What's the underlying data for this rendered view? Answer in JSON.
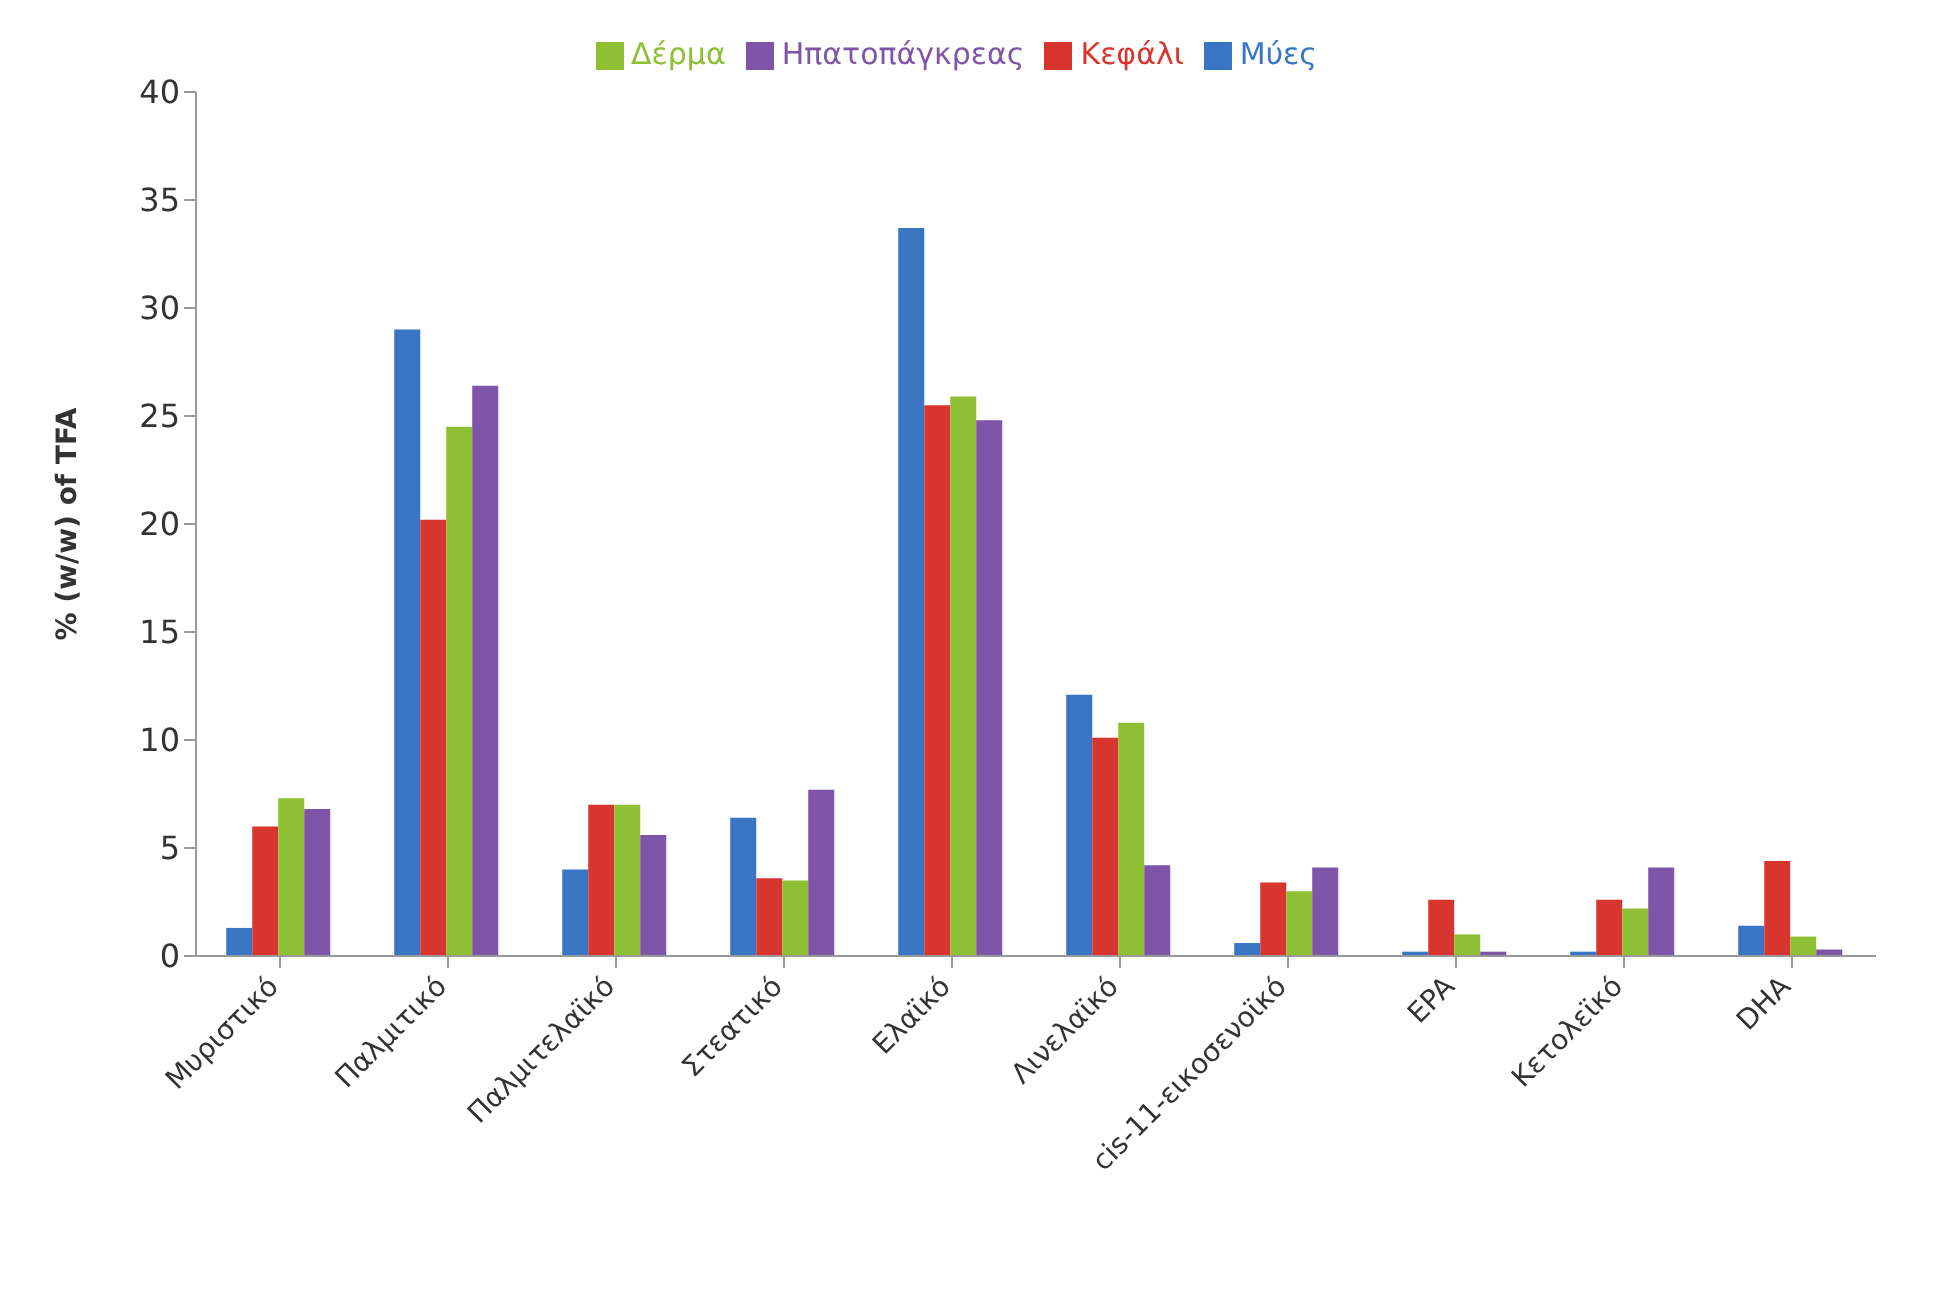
{
  "chart_data": {
    "type": "bar",
    "ylabel": "% (w/w) of TFA",
    "categories": [
      "Μυριστικό",
      "Παλμιτικό",
      "Παλμιτελαϊκό",
      "Στεατικό",
      "Ελαϊκό",
      "Λινελαϊκό",
      "cis-11-εικοσενοϊκό",
      "EPA",
      "Κετολεϊκό",
      "DHA"
    ],
    "series": [
      {
        "name": "Μύες",
        "color": "#3a75c4",
        "values": [
          1.3,
          29.0,
          4.0,
          6.4,
          33.7,
          12.1,
          0.6,
          0.2,
          0.2,
          1.4
        ]
      },
      {
        "name": "Κεφάλι",
        "color": "#d9352f",
        "values": [
          6.0,
          20.2,
          7.0,
          3.6,
          25.5,
          10.1,
          3.4,
          2.6,
          2.6,
          4.4
        ]
      },
      {
        "name": "Δέρμα",
        "color": "#8fbf32",
        "values": [
          7.3,
          24.5,
          7.0,
          3.5,
          25.9,
          10.8,
          3.0,
          1.0,
          2.2,
          0.9
        ]
      },
      {
        "name": "Ηπατοπάγκρεας",
        "color": "#7e55a8",
        "values": [
          6.8,
          26.4,
          5.6,
          7.7,
          24.8,
          4.2,
          4.1,
          0.2,
          4.1,
          0.3
        ]
      }
    ],
    "ylim": [
      0,
      40
    ],
    "yticks": [
      0,
      5,
      10,
      15,
      20,
      25,
      30,
      35,
      40
    ],
    "grid": false,
    "legend": "top"
  }
}
